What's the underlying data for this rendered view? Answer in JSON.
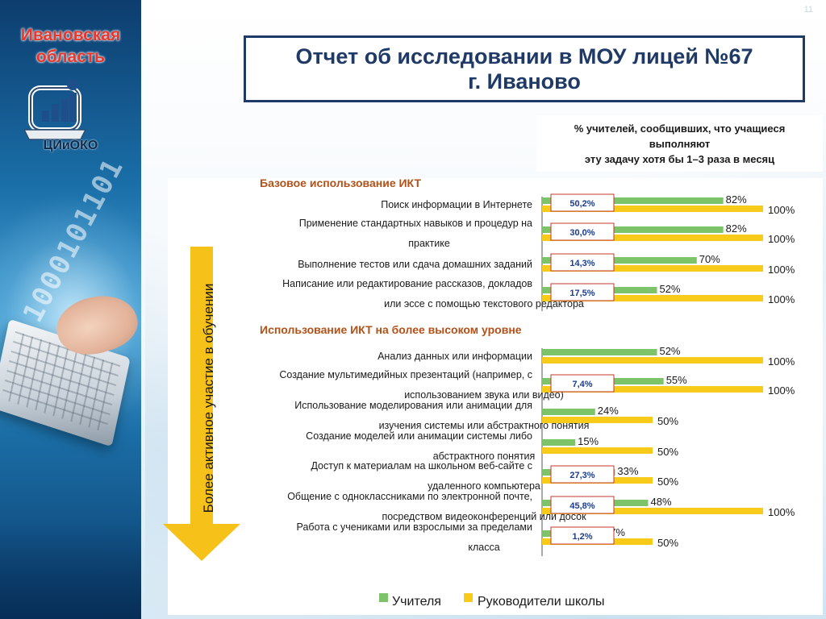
{
  "page_number": "11",
  "region": {
    "line1": "Ивановская",
    "line2": "область"
  },
  "logo": {
    "text": "ЦИиОКО"
  },
  "title": {
    "line1": "Отчет об исследовании в МОУ лицей №67",
    "line2": "г. Иваново"
  },
  "note": {
    "line1": "% учителей, сообщивших, что учащиеся",
    "line2": "выполняют",
    "line3": "эту задачу хотя бы 1–3 раза в месяц"
  },
  "arrow_label": "Более активное участие в обучении",
  "colors": {
    "teachers": "#7cc36a",
    "principals": "#f8cb1a",
    "section_heading": "#b0521a",
    "badge_border": "#c0392b",
    "badge_text": "#1a3d8f",
    "arrow": "#f6c21a",
    "title": "#1f3a66"
  },
  "chart_data": {
    "type": "bar",
    "orientation": "horizontal",
    "xlim": [
      0,
      100
    ],
    "grid": false,
    "legend_position": "bottom",
    "series": [
      {
        "name": "Учителя",
        "color": "#7cc36a"
      },
      {
        "name": "Руководители школы",
        "color": "#f8cb1a"
      }
    ],
    "sections": [
      {
        "heading": "Базовое использование ИКТ",
        "items": [
          {
            "label": [
              "Поиск информации в Интернете"
            ],
            "teachers": 82,
            "principals": 100,
            "badge": "50,2%"
          },
          {
            "label": [
              "Применение стандартных навыков и процедур на",
              "практике"
            ],
            "teachers": 82,
            "principals": 100,
            "badge": "30,0%"
          },
          {
            "label": [
              "Выполнение тестов или сдача домашних заданий"
            ],
            "teachers": 70,
            "principals": 100,
            "badge": "14,3%"
          },
          {
            "label": [
              "Написание или редактирование рассказов, докладов",
              "или эссе с помощью текстового редактора"
            ],
            "teachers": 52,
            "principals": 100,
            "badge": "17,5%"
          }
        ]
      },
      {
        "heading": "Использование ИКТ на более высоком уровне",
        "items": [
          {
            "label": [
              "Анализ данных или информации"
            ],
            "teachers": 52,
            "principals": 100,
            "badge": ""
          },
          {
            "label": [
              "Создание мультимедийных презентаций (например, с",
              "использованием звука или видео)"
            ],
            "teachers": 55,
            "principals": 100,
            "badge": "7,4%"
          },
          {
            "label": [
              "Использование моделирования или анимации для",
              "изучения системы или абстрактного понятия"
            ],
            "teachers": 24,
            "principals": 50,
            "badge": ""
          },
          {
            "label": [
              "Создание моделей или анимации системы либо",
              "абстрактного понятия"
            ],
            "teachers": 15,
            "principals": 50,
            "badge": ""
          },
          {
            "label": [
              "Доступ к материалам на школьном веб-сайте с",
              "удаленного компьютера"
            ],
            "teachers": 33,
            "principals": 50,
            "badge": "27,3%"
          },
          {
            "label": [
              "Общение с одноклассниками по электронной почте,",
              "посредством видеоконференций или досок"
            ],
            "teachers": 48,
            "principals": 100,
            "badge": "45,8%"
          },
          {
            "label": [
              "Работа с учениками или взрослыми за пределами",
              "класса"
            ],
            "teachers": 27,
            "principals": 50,
            "badge": "1,2%"
          }
        ]
      }
    ]
  }
}
